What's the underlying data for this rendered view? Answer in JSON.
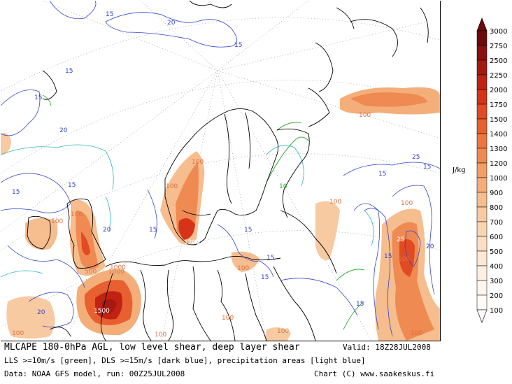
{
  "footer": {
    "line1": "MLCAPE 180-0hPa AGL, low level shear, deep layer shear",
    "valid": "Valid: 18Z28JUL2008",
    "line2": "LLS >=10m/s [green], DLS >=15m/s [dark blue], precipitation areas [light blue]",
    "line3": "Data: NOAA GFS model, run: 00Z25JUL2008",
    "credit": "Chart (C) www.saakeskus.fi"
  },
  "legend": {
    "unit": "J/kg",
    "ticks": [
      "3000",
      "2750",
      "2500",
      "2250",
      "2000",
      "1750",
      "1500",
      "1400",
      "1300",
      "1200",
      "1000",
      "900",
      "800",
      "700",
      "600",
      "500",
      "400",
      "300",
      "200",
      "100"
    ],
    "colors": [
      "#6b0a0a",
      "#8a1010",
      "#a51a10",
      "#c02214",
      "#d63318",
      "#e14a22",
      "#e8602f",
      "#ec7640",
      "#ef8a52",
      "#f29e66",
      "#f4ae7a",
      "#f6bd8e",
      "#f8caa1",
      "#f9d5b2",
      "#fbdfc3",
      "#fce8d3",
      "#fdf0e2",
      "#fef5ec",
      "#fefaf5",
      "#ffffff"
    ]
  },
  "map_labels": {
    "cape": [
      "100",
      "100",
      "100",
      "100",
      "100",
      "100",
      "100",
      "100",
      "100",
      "500",
      "1000",
      "1000",
      "1200",
      "1500",
      "100",
      "100",
      "100",
      "100",
      "100"
    ],
    "shear": [
      "15",
      "20",
      "15",
      "15",
      "15",
      "20",
      "15",
      "15",
      "20",
      "10",
      "15",
      "15",
      "15",
      "20",
      "15",
      "25",
      "15",
      "25",
      "20",
      "15",
      "15",
      "15"
    ]
  }
}
